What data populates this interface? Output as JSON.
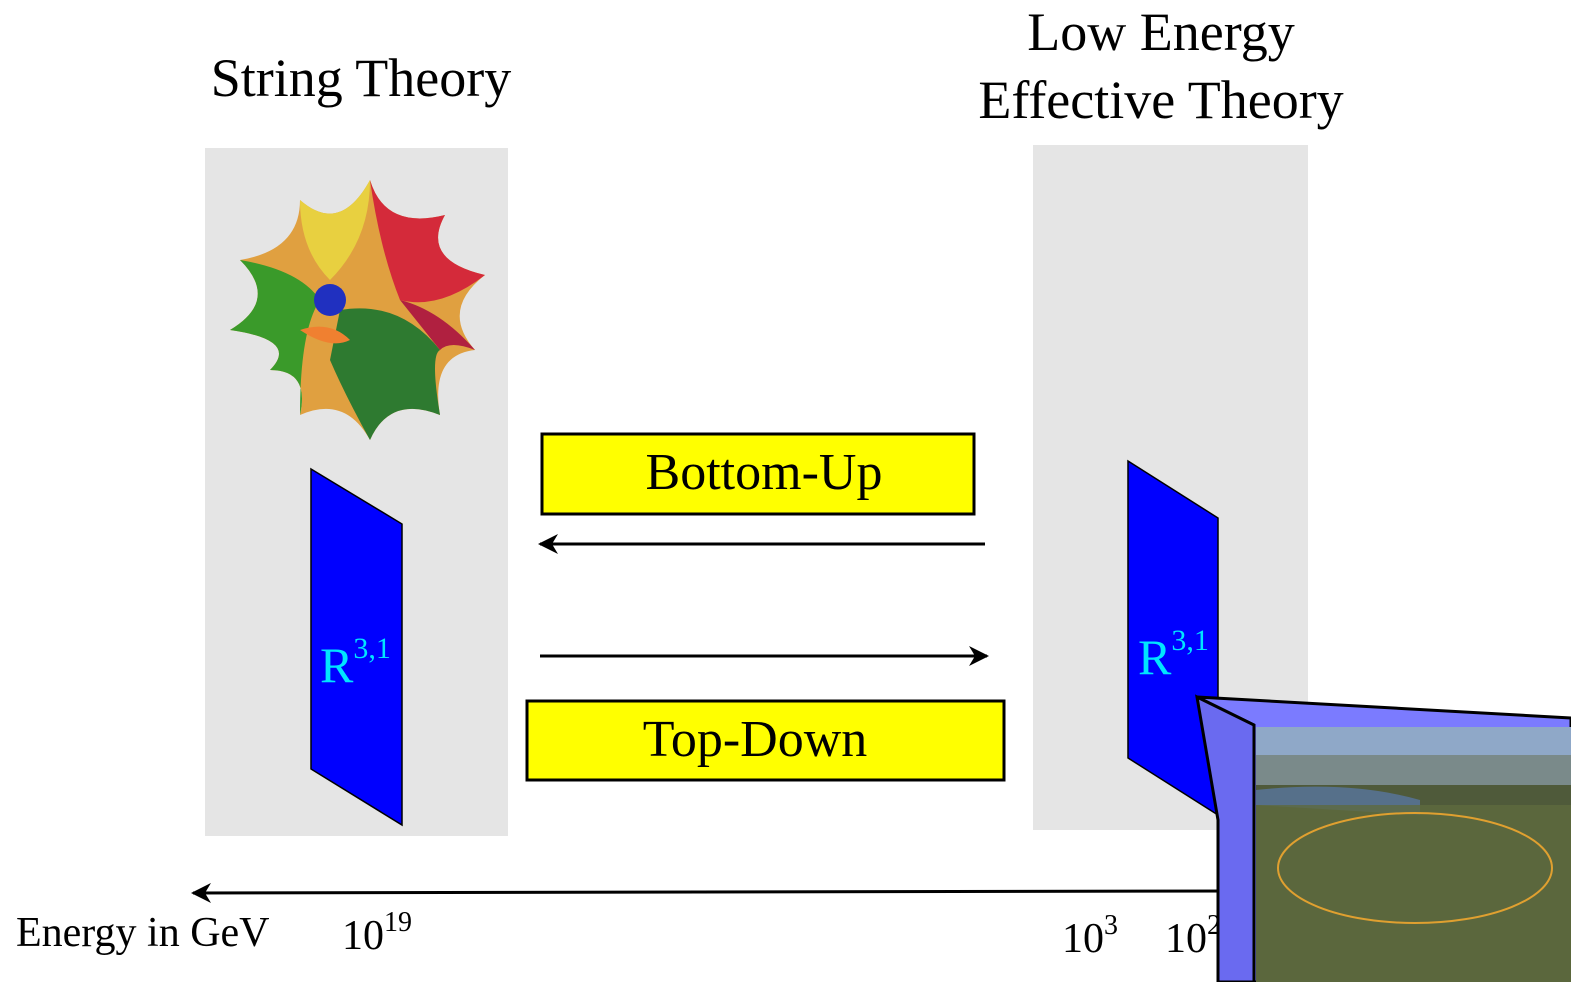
{
  "panels": [
    {
      "title": [
        "String Theory"
      ],
      "space": {
        "base": "R",
        "sup": "3,1"
      }
    },
    {
      "title": [
        "Low Energy",
        "Effective Theory"
      ],
      "space": {
        "base": "R",
        "sup": "3,1"
      }
    }
  ],
  "arrows": [
    "Bottom-Up",
    "Top-Down"
  ],
  "energy_axis": {
    "label": "Energy in GeV",
    "ticks": [
      {
        "base": "10",
        "sup": "19"
      },
      {
        "base": "10",
        "sup": "3"
      },
      {
        "base": "10",
        "sup": "2"
      }
    ]
  }
}
